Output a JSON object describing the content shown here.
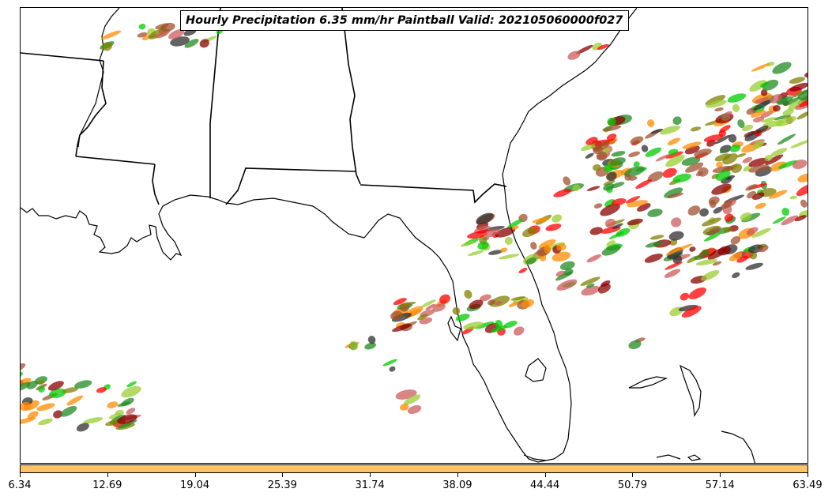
{
  "title": "Hourly Precipitation 6.35 mm/hr Paintball Valid: 202105060000f027",
  "colorbar": {
    "fill_color": "#ffc266",
    "ticks": [
      "6.34",
      "12.69",
      "19.04",
      "25.39",
      "31.74",
      "38.09",
      "44.44",
      "50.79",
      "57.14",
      "63.49"
    ]
  },
  "map": {
    "region": "Southeastern United States / Florida",
    "background": "#ffffff",
    "outline_color": "#000000",
    "member_colors": [
      "#8b0000",
      "#a0522d",
      "#808000",
      "#9acd32",
      "#ff0000",
      "#ff8c00",
      "#00cc00",
      "#228b22",
      "#2f2f2f",
      "#cd5c5c"
    ]
  }
}
